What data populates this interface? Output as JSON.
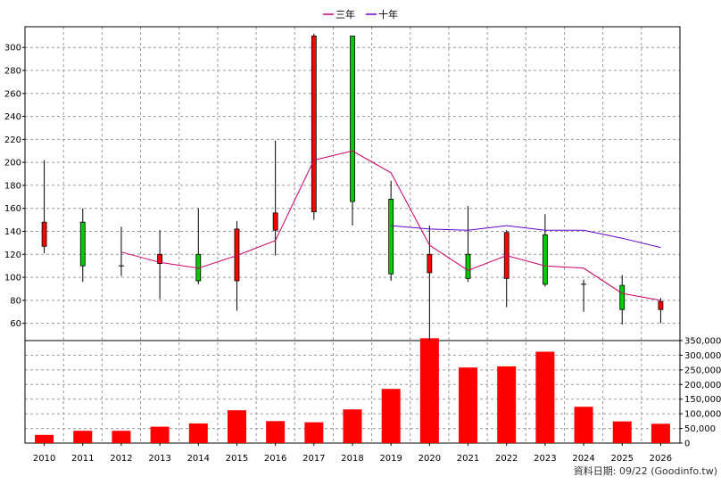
{
  "chart_data": {
    "type": "candlestick",
    "legend": {
      "placement": "top-center",
      "items": [
        {
          "name": "三年",
          "color": "#cc0066"
        },
        {
          "name": "十年",
          "color": "#6600cc"
        }
      ]
    },
    "categories": [
      "2010",
      "2011",
      "2012",
      "2013",
      "2014",
      "2015",
      "2016",
      "2017",
      "2018",
      "2019",
      "2020",
      "2021",
      "2022",
      "2023",
      "2024",
      "2025",
      "2026"
    ],
    "price_axis": {
      "ylim": [
        45,
        318
      ],
      "ticks": [
        60,
        80,
        100,
        120,
        140,
        160,
        180,
        200,
        220,
        240,
        260,
        280,
        300
      ],
      "grid": true
    },
    "volume_axis": {
      "ylim": [
        0,
        350000
      ],
      "ticks": [
        0,
        50000,
        100000,
        150000,
        200000,
        250000,
        300000,
        350000
      ],
      "tick_labels": [
        "0",
        "50,000",
        "100,000",
        "150,000",
        "200,000",
        "250,000",
        "300,000",
        "350,000"
      ],
      "grid": true
    },
    "candles": [
      {
        "year": "2010",
        "open": 127,
        "close": 148,
        "high": 202,
        "low": 121,
        "color": "#ff0000"
      },
      {
        "year": "2011",
        "open": 148,
        "close": 110,
        "high": 160,
        "low": 96,
        "color": "#00cc00"
      },
      {
        "year": "2012",
        "open": 110,
        "close": 110,
        "high": 144,
        "low": 101,
        "color": "#000000"
      },
      {
        "year": "2013",
        "open": 112,
        "close": 120,
        "high": 141,
        "low": 81,
        "color": "#ff0000"
      },
      {
        "year": "2014",
        "open": 120,
        "close": 97,
        "high": 160,
        "low": 94,
        "color": "#00cc00"
      },
      {
        "year": "2015",
        "open": 97,
        "close": 142,
        "high": 149,
        "low": 71,
        "color": "#ff0000"
      },
      {
        "year": "2016",
        "open": 141,
        "close": 156,
        "high": 219,
        "low": 119,
        "color": "#ff0000"
      },
      {
        "year": "2017",
        "open": 157,
        "close": 310,
        "high": 312,
        "low": 150,
        "color": "#ff0000"
      },
      {
        "year": "2018",
        "open": 310,
        "close": 166,
        "high": 310,
        "low": 145,
        "color": "#00cc00"
      },
      {
        "year": "2019",
        "open": 168,
        "close": 103,
        "high": 184,
        "low": 97,
        "color": "#00cc00"
      },
      {
        "year": "2020",
        "open": 104,
        "close": 120,
        "high": 145,
        "low": 45,
        "color": "#ff0000"
      },
      {
        "year": "2021",
        "open": 120,
        "close": 99,
        "high": 162,
        "low": 96,
        "color": "#00cc00"
      },
      {
        "year": "2022",
        "open": 99,
        "close": 139,
        "high": 141,
        "low": 74,
        "color": "#ff0000"
      },
      {
        "year": "2023",
        "open": 137,
        "close": 94,
        "high": 155,
        "low": 92,
        "color": "#00cc00"
      },
      {
        "year": "2024",
        "open": 94,
        "close": 94,
        "high": 98,
        "low": 70,
        "color": "#000000"
      },
      {
        "year": "2025",
        "open": 93,
        "close": 72,
        "high": 102,
        "low": 59,
        "color": "#00cc00"
      },
      {
        "year": "2026",
        "open": 72,
        "close": 79,
        "high": 82,
        "low": 60,
        "color": "#ff0000"
      }
    ],
    "series": [
      {
        "name": "三年",
        "color": "#cc0066",
        "values": [
          null,
          null,
          122,
          113,
          108,
          119,
          132,
          202,
          210,
          191,
          128,
          106,
          119,
          110,
          108,
          86,
          80
        ]
      },
      {
        "name": "十年",
        "color": "#6600cc",
        "values": [
          null,
          null,
          null,
          null,
          null,
          null,
          null,
          null,
          null,
          145,
          142,
          141,
          145,
          141,
          141,
          134,
          126
        ]
      }
    ],
    "volume": {
      "color": "#ff0000",
      "values": [
        28000,
        42000,
        42000,
        56000,
        67000,
        112000,
        75000,
        71000,
        115000,
        185000,
        358000,
        258000,
        262000,
        312000,
        124000,
        74000,
        66000
      ]
    }
  },
  "source_label": "資料日期: 09/22 (Goodinfo.tw)"
}
